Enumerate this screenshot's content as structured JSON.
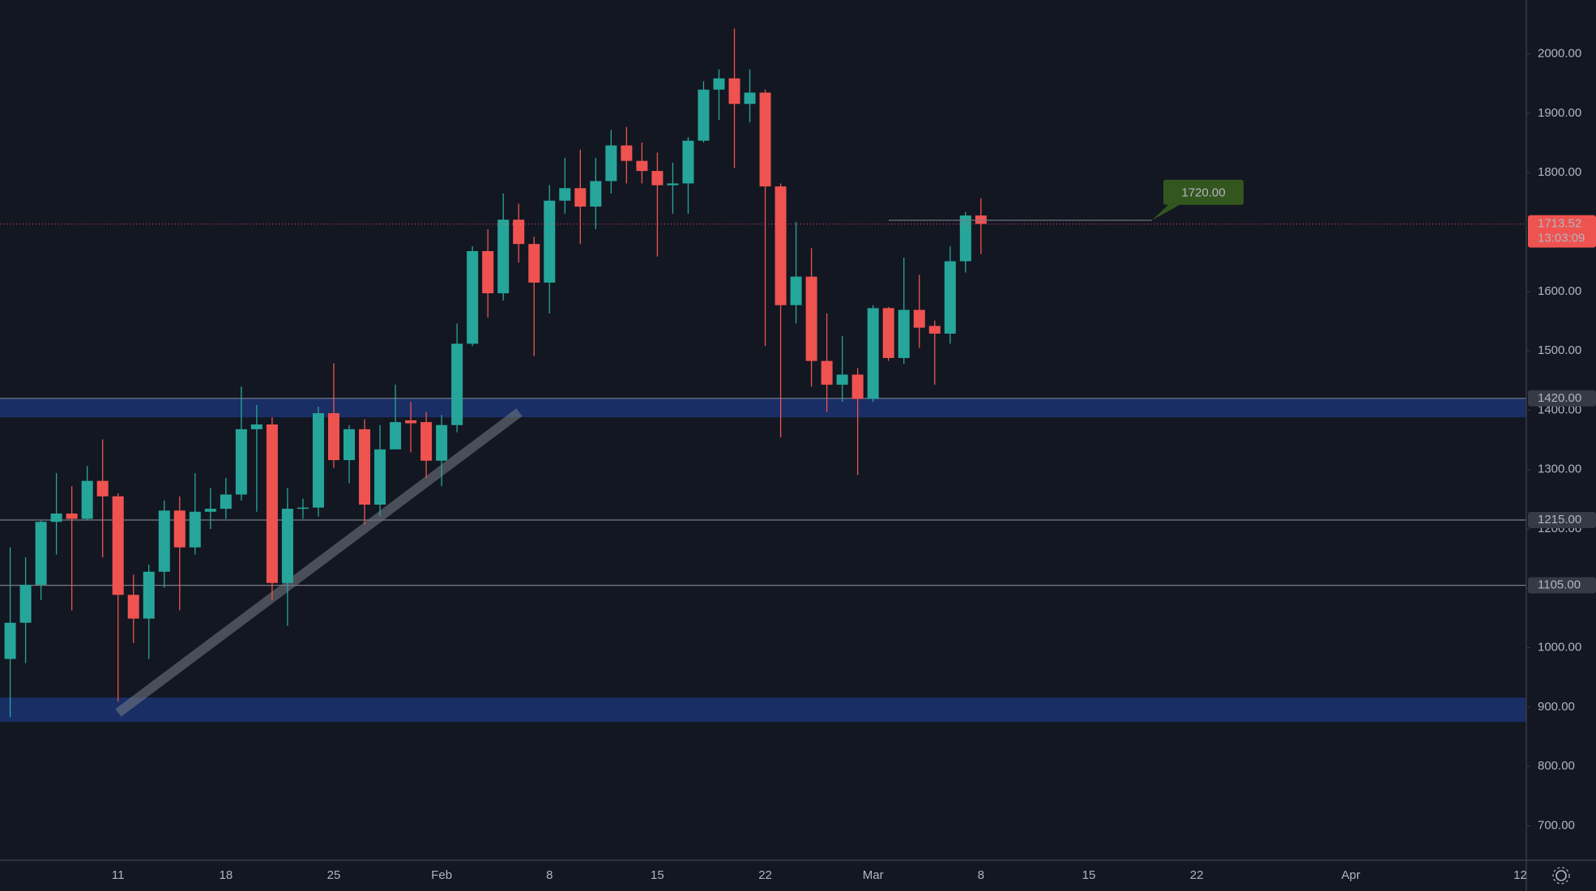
{
  "chart_data": {
    "type": "candlestick",
    "categories": [
      null,
      null,
      null,
      null,
      null,
      null,
      null,
      "11",
      null,
      null,
      null,
      null,
      null,
      null,
      "18",
      null,
      null,
      null,
      null,
      null,
      null,
      "25",
      null,
      null,
      null,
      null,
      null,
      null,
      "Feb",
      null,
      null,
      null,
      null,
      null,
      null,
      "8",
      null,
      null,
      null,
      null,
      null,
      null,
      "15",
      null,
      null,
      null,
      null,
      null,
      null,
      "22",
      null,
      null,
      null,
      null,
      null,
      null,
      "Mar",
      null,
      null,
      null,
      null,
      null,
      null,
      "8",
      null,
      null,
      null,
      null,
      null,
      null,
      "15",
      null,
      null,
      null,
      null,
      null,
      null,
      "22",
      null,
      null,
      null,
      null,
      null,
      null,
      null,
      null,
      null,
      "Apr",
      null,
      null,
      null,
      null,
      null,
      null,
      null,
      null,
      null,
      null,
      "12"
    ],
    "open": [
      981,
      1042,
      1106,
      1212,
      1226,
      1217,
      1281,
      1255,
      1089,
      1049,
      1128,
      1231,
      1169,
      1229,
      1234,
      1258,
      1368,
      1376,
      1109,
      1234,
      1236,
      1395,
      1316,
      1368,
      1241,
      1334,
      1383,
      1380,
      1315,
      1375,
      1512,
      1668,
      1597,
      1721,
      1680,
      1615,
      1753,
      1774,
      1743,
      1786,
      1846,
      1820,
      1803,
      1779,
      1782,
      1854,
      1940,
      1959,
      1916,
      1935,
      1777,
      1577,
      1625,
      1483,
      1443,
      1460,
      1419,
      1572,
      1488,
      1569,
      1542,
      1529,
      1651,
      1728,
      null,
      null,
      null,
      null,
      null,
      null,
      null,
      null,
      null,
      null,
      null,
      null,
      null,
      null,
      null,
      null,
      null,
      null,
      null,
      null,
      null,
      null,
      null,
      null,
      null,
      null,
      null,
      null,
      null,
      null,
      null,
      null,
      null,
      null,
      null
    ],
    "high": [
      1169,
      1152,
      1214,
      1294,
      1272,
      1306,
      1351,
      1260,
      1123,
      1140,
      1248,
      1255,
      1294,
      1269,
      1286,
      1440,
      1409,
      1388,
      1269,
      1251,
      1406,
      1479,
      1375,
      1385,
      1375,
      1443,
      1414,
      1397,
      1392,
      1546,
      1676,
      1705,
      1765,
      1748,
      1692,
      1779,
      1825,
      1839,
      1825,
      1872,
      1877,
      1851,
      1834,
      1817,
      1860,
      1954,
      1974,
      2043,
      1974,
      1940,
      1782,
      1717,
      1673,
      1563,
      1525,
      1471,
      1577,
      1574,
      1657,
      1628,
      1551,
      1676,
      1734,
      1757,
      null,
      null,
      null,
      null,
      null,
      null,
      null,
      null,
      null,
      null,
      null,
      null,
      null,
      null,
      null,
      null,
      null,
      null,
      null,
      null,
      null,
      null,
      null,
      null,
      null,
      null,
      null,
      null,
      null,
      null,
      null,
      null,
      null,
      null,
      null
    ],
    "low": [
      883,
      974,
      1080,
      1157,
      1063,
      1214,
      1152,
      909,
      1008,
      981,
      1101,
      1063,
      1157,
      1200,
      1217,
      1248,
      1229,
      1080,
      1037,
      1217,
      1221,
      1303,
      1277,
      1207,
      1221,
      1337,
      1329,
      1286,
      1272,
      1363,
      1508,
      1556,
      1585,
      1649,
      1491,
      1563,
      1731,
      1680,
      1705,
      1765,
      1782,
      1782,
      1659,
      1731,
      1731,
      1851,
      1889,
      1808,
      1885,
      1508,
      1354,
      1546,
      1440,
      1397,
      1414,
      1291,
      1414,
      1483,
      1478,
      1505,
      1443,
      1512,
      1632,
      1663,
      null,
      null,
      null,
      null,
      null,
      null,
      null,
      null,
      null,
      null,
      null,
      null,
      null,
      null,
      null,
      null,
      null,
      null,
      null,
      null,
      null,
      null,
      null,
      null,
      null,
      null,
      null,
      null,
      null,
      null,
      null,
      null,
      null,
      null,
      null
    ],
    "close": [
      1042,
      1106,
      1212,
      1226,
      1217,
      1281,
      1255,
      1089,
      1049,
      1128,
      1231,
      1169,
      1229,
      1234,
      1258,
      1368,
      1376,
      1109,
      1234,
      1236,
      1395,
      1316,
      1368,
      1241,
      1334,
      1380,
      1378,
      1315,
      1375,
      1512,
      1668,
      1597,
      1721,
      1680,
      1615,
      1753,
      1774,
      1743,
      1786,
      1846,
      1820,
      1803,
      1779,
      1782,
      1854,
      1940,
      1959,
      1916,
      1935,
      1777,
      1577,
      1625,
      1483,
      1443,
      1460,
      1419,
      1572,
      1488,
      1569,
      1539,
      1529,
      1651,
      1728,
      1714,
      null,
      null,
      null,
      null,
      null,
      null,
      null,
      null,
      null,
      null,
      null,
      null,
      null,
      null,
      null,
      null,
      null,
      null,
      null,
      null,
      null,
      null,
      null,
      null,
      null,
      null,
      null,
      null,
      null,
      null,
      null,
      null,
      null,
      null,
      null
    ],
    "up_color": "#26a69a",
    "down_color": "#ef5350",
    "ylim": [
      642,
      2091
    ],
    "yticks": [
      {
        "value": 700,
        "label": "700.00"
      },
      {
        "value": 800,
        "label": "800.00"
      },
      {
        "value": 900,
        "label": "900.00"
      },
      {
        "value": 1000,
        "label": "1000.00"
      },
      {
        "value": 1100,
        "label": "1100.00"
      },
      {
        "value": 1200,
        "label": "1200.00"
      },
      {
        "value": 1300,
        "label": "1300.00"
      },
      {
        "value": 1400,
        "label": "1400.00"
      },
      {
        "value": 1500,
        "label": "1500.00"
      },
      {
        "value": 1600,
        "label": "1600.00"
      },
      {
        "value": 1700,
        "label": "1700.00"
      },
      {
        "value": 1800,
        "label": "1800.00"
      },
      {
        "value": 1900,
        "label": "1900.00"
      },
      {
        "value": 2000,
        "label": "2000.00"
      }
    ],
    "grid": false,
    "zones": [
      {
        "from": 1388,
        "to": 1421,
        "color": "#2962ff"
      },
      {
        "from": 875,
        "to": 916,
        "color": "#2962ff"
      }
    ],
    "levels": [
      {
        "value": 1420,
        "label": "1420.00"
      },
      {
        "value": 1215,
        "label": "1215.00"
      },
      {
        "value": 1105,
        "label": "1105.00"
      }
    ],
    "callout": {
      "value": 1720,
      "label": "1720.00",
      "color": "#33561f"
    },
    "last_price": 1713.52,
    "countdown": "13:03:09"
  }
}
